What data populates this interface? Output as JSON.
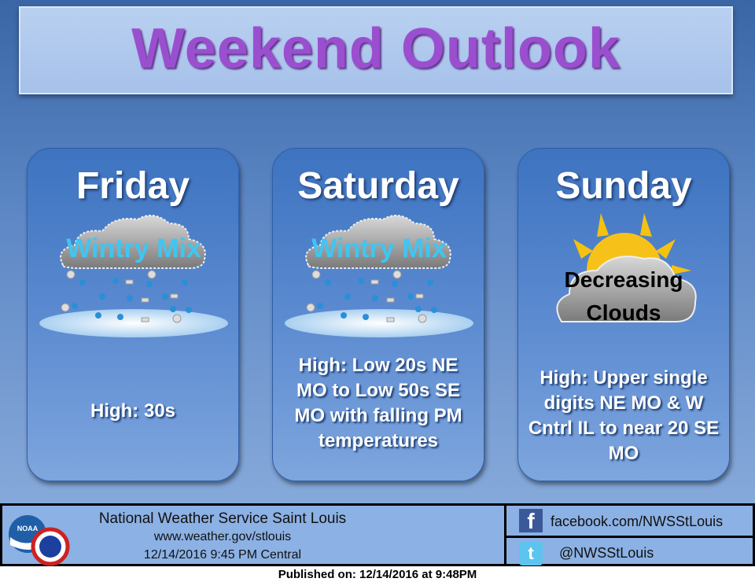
{
  "title": "Weekend Outlook",
  "days": [
    {
      "name": "Friday",
      "icon": "wintry-mix-icon",
      "icon_label": "Wintry Mix",
      "forecast": "High: 30s"
    },
    {
      "name": "Saturday",
      "icon": "wintry-mix-icon",
      "icon_label": "Wintry Mix",
      "forecast": "High: Low 20s NE MO to Low 50s SE MO with falling PM temperatures"
    },
    {
      "name": "Sunday",
      "icon": "partly-sunny-cloud-icon",
      "icon_label": "Decreasing Clouds",
      "forecast": "High: Upper single digits NE MO & W Cntrl IL to near 20 SE MO"
    }
  ],
  "footer": {
    "office": "National Weather Service Saint Louis",
    "website": "www.weather.gov/stlouis",
    "issued": "12/14/2016 9:45 PM Central",
    "facebook": "facebook.com/NWSStLouis",
    "twitter": "@NWSStLouis",
    "logo_text": "NOAA"
  },
  "published": "Published on: 12/14/2016 at 9:48PM",
  "colors": {
    "title": "#9a4fcf",
    "accent": "#3d73c0"
  }
}
